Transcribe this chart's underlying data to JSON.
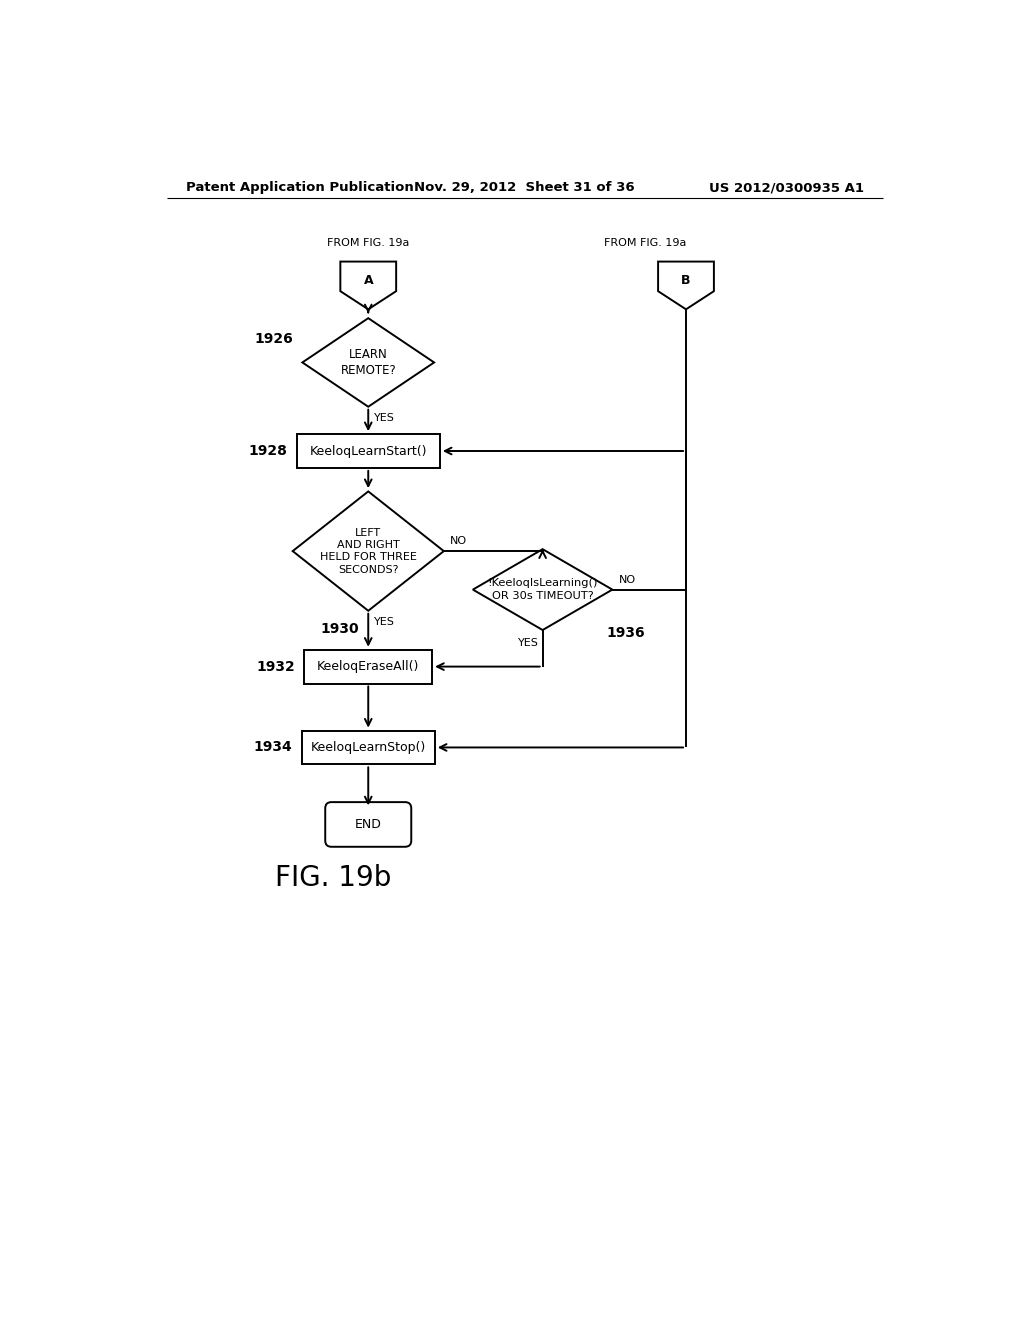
{
  "header_left": "Patent Application Publication",
  "header_mid": "Nov. 29, 2012  Sheet 31 of 36",
  "header_right": "US 2012/0300935 A1",
  "figure_label": "FIG. 19b",
  "bg_color": "#ffffff",
  "line_color": "#000000"
}
